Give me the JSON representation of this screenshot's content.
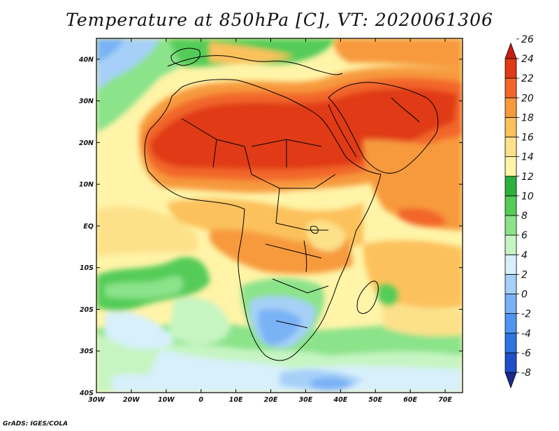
{
  "title": "Temperature at 850hPa [C], VT: 2020061306",
  "credit": "GrADS: IGES/COLA",
  "map": {
    "lon_range": [
      -30,
      75
    ],
    "lat_range": [
      -40,
      45
    ],
    "lon_ticks": [
      {
        "value": -30,
        "label": "30W"
      },
      {
        "value": -20,
        "label": "20W"
      },
      {
        "value": -10,
        "label": "10W"
      },
      {
        "value": 0,
        "label": "0"
      },
      {
        "value": 10,
        "label": "10E"
      },
      {
        "value": 20,
        "label": "20E"
      },
      {
        "value": 30,
        "label": "30E"
      },
      {
        "value": 40,
        "label": "40E"
      },
      {
        "value": 50,
        "label": "50E"
      },
      {
        "value": 60,
        "label": "60E"
      },
      {
        "value": 70,
        "label": "70E"
      }
    ],
    "lat_ticks": [
      {
        "value": 40,
        "label": "40N"
      },
      {
        "value": 30,
        "label": "30N"
      },
      {
        "value": 20,
        "label": "20N"
      },
      {
        "value": 10,
        "label": "10N"
      },
      {
        "value": 0,
        "label": "EQ"
      },
      {
        "value": -10,
        "label": "10S"
      },
      {
        "value": -20,
        "label": "20S"
      },
      {
        "value": -30,
        "label": "30S"
      },
      {
        "value": -40,
        "label": "40S"
      }
    ]
  },
  "colorbar": {
    "levels": [
      "-8",
      "-6",
      "-4",
      "-2",
      "0",
      "2",
      "4",
      "6",
      "8",
      "10",
      "12",
      "14",
      "16",
      "18",
      "20",
      "22",
      "24",
      "26"
    ],
    "colors": [
      "#1a2a8c",
      "#1f4fc8",
      "#2f74e0",
      "#4f94f0",
      "#79b2f5",
      "#a6d0f8",
      "#d7f0fb",
      "#c6f5c2",
      "#8be38a",
      "#55cc58",
      "#2bb13c",
      "#fff4a8",
      "#fde18a",
      "#fcc15c",
      "#f79a3c",
      "#f2662a",
      "#e03a17",
      "#c81e12"
    ]
  },
  "colors": {
    "ocean_base": "#fff4a8",
    "frame": "#000000",
    "border": "#000000"
  }
}
